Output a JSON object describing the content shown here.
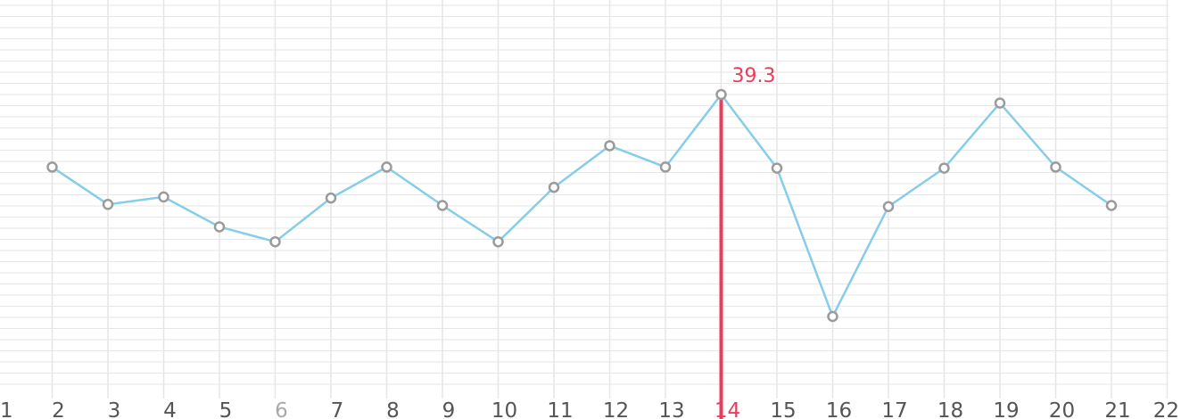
{
  "chart_data": {
    "type": "line",
    "x": [
      2,
      3,
      4,
      5,
      6,
      7,
      8,
      9,
      10,
      11,
      12,
      13,
      14,
      15,
      16,
      17,
      18,
      19,
      20,
      21
    ],
    "values": [
      32.5,
      29.0,
      29.7,
      26.9,
      25.5,
      29.6,
      32.5,
      28.9,
      25.5,
      30.6,
      34.5,
      32.5,
      39.3,
      32.4,
      18.5,
      28.8,
      32.4,
      38.5,
      32.5,
      28.9
    ],
    "tick_labels": [
      "1",
      "2",
      "3",
      "4",
      "5",
      "6",
      "7",
      "8",
      "9",
      "10",
      "11",
      "12",
      "13",
      "14",
      "15",
      "16",
      "17",
      "18",
      "19",
      "20",
      "21",
      "22"
    ],
    "xlim": [
      1,
      22
    ],
    "selected": {
      "x": 14,
      "label": "39.3"
    },
    "grid": true,
    "colors": {
      "line": "#85cde9",
      "marker_stroke": "#9b9b9b",
      "marker_fill": "#ffffff",
      "selected": "#e83e5c",
      "grid": "#e6e6e6",
      "tick": "#555555",
      "tick_muted": "#a9a9a9"
    }
  }
}
